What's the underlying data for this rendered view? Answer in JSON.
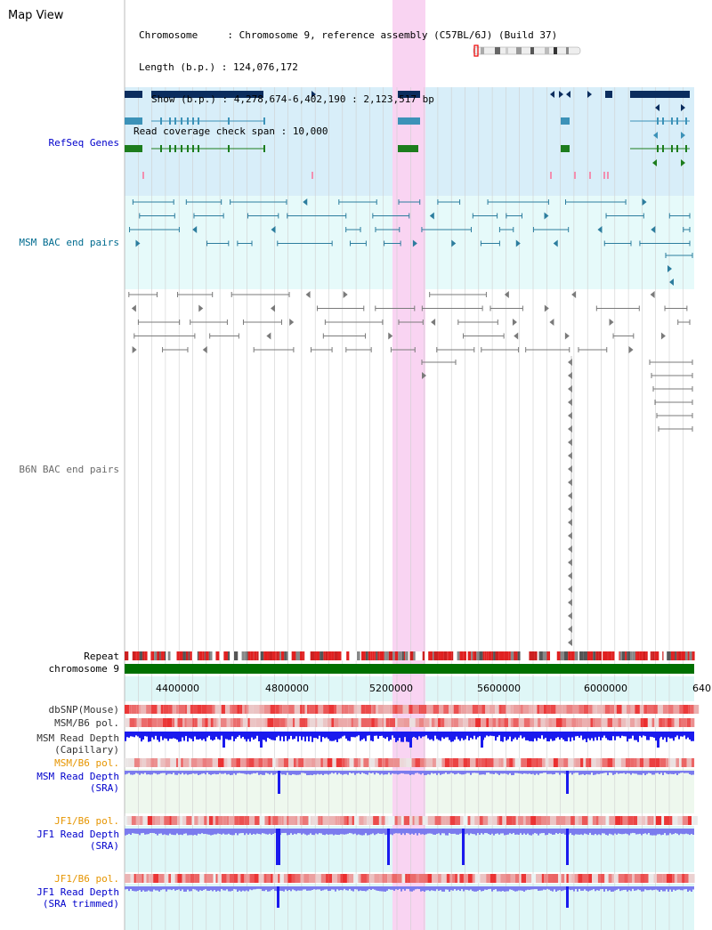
{
  "title": "Map View",
  "info": {
    "chromosome_key": "Chromosome     : ",
    "chromosome_val": "Chromosome 9, reference assembly (C57BL/6J) (Build 37)",
    "length_key": "Length (b.p.) : ",
    "length_val": "124,076,172",
    "show_key": "Show (b.p.) : ",
    "show_val": "4,278,674-6,402,190 : 2,123,517 bp",
    "span_key": "Read coverage check span : ",
    "span_val": "10,000"
  },
  "tracks": {
    "refseq": "RefSeq Genes",
    "msm_bac": "MSM BAC end pairs",
    "b6n_bac": "B6N BAC end pairs",
    "repeat": "Repeat",
    "chromosome": "chromosome 9",
    "dbsnp": "dbSNP(Mouse)",
    "msm_b6_pol_1": "MSM/B6 pol.",
    "msm_read_depth_cap_1": "MSM Read Depth",
    "msm_read_depth_cap_2": "(Capillary)",
    "msm_b6_pol_2": "MSM/B6 pol.",
    "msm_read_depth_sra_1": "MSM Read Depth",
    "msm_read_depth_sra_2": "(SRA)",
    "jf1_b6_pol_1": "JF1/B6 pol.",
    "jf1_read_depth_sra_1": "JF1 Read Depth",
    "jf1_read_depth_sra_2": "(SRA)",
    "jf1_b6_pol_2": "JF1/B6 pol.",
    "jf1_read_depth_trim_1": "JF1 Read Depth",
    "jf1_read_depth_trim_2": "(SRA trimmed)"
  },
  "axis": {
    "ticks": [
      "4400000",
      "4800000",
      "5200000",
      "5600000",
      "6000000",
      "640"
    ]
  },
  "colors": {
    "refseq_bg": "#d8eef9",
    "msm_bg": "#e6fafa",
    "highlight": "#f9d4f2",
    "gene_dark": "#0b2d5e",
    "gene_teal": "#3c92b8",
    "gene_green": "#1d7d1d",
    "bac_teal": "#2c7d9e",
    "bac_gray": "#7a7a7a",
    "chrom_green": "#007000",
    "snp_red": "#e83030",
    "depth_blue": "#1a1aee",
    "depth_light": "#7b7bee"
  }
}
